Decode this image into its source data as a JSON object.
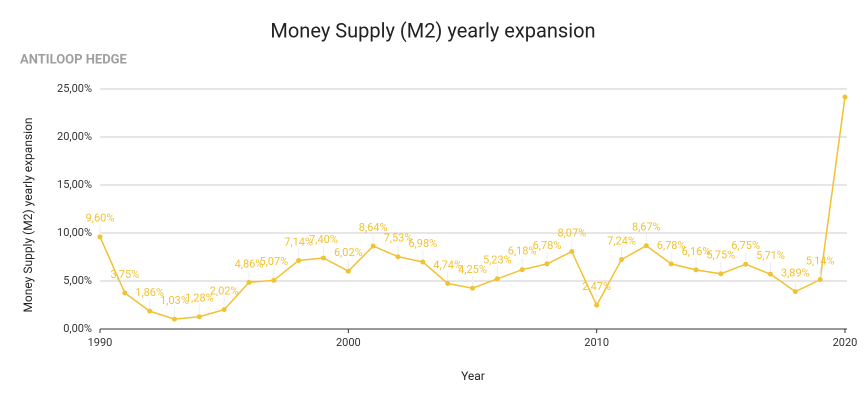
{
  "chart_data": {
    "type": "line",
    "title": "Money Supply (M2) yearly expansion",
    "subtitle": "ANTILOOP HEDGE",
    "xlabel": "Year",
    "ylabel": "Money Supply (M2) yearly expansion",
    "x": [
      1990,
      1991,
      1992,
      1993,
      1994,
      1995,
      1996,
      1997,
      1998,
      1999,
      2000,
      2001,
      2002,
      2003,
      2004,
      2005,
      2006,
      2007,
      2008,
      2009,
      2010,
      2011,
      2012,
      2013,
      2014,
      2015,
      2016,
      2017,
      2018,
      2019,
      2020
    ],
    "series": [
      {
        "name": "Money Supply (M2) yearly expansion",
        "color": "#f1c232",
        "values": [
          9.6,
          3.75,
          1.86,
          1.03,
          1.28,
          2.02,
          4.86,
          5.07,
          7.14,
          7.4,
          6.02,
          8.64,
          7.53,
          6.98,
          4.74,
          4.25,
          5.23,
          6.18,
          6.78,
          8.07,
          2.47,
          7.24,
          8.67,
          6.78,
          6.16,
          5.75,
          6.75,
          5.71,
          3.89,
          5.14,
          24.17
        ],
        "value_labels": [
          "9,60%",
          "3,75%",
          "1,86%",
          "1,03%",
          "1,28%",
          "2,02%",
          "4,86%",
          "5,07%",
          "7,14%",
          "7,40%",
          "6,02%",
          "8,64%",
          "7,53%",
          "6,98%",
          "4,74%",
          "4,25%",
          "5,23%",
          "6,18%",
          "6,78%",
          "8,07%",
          "2,47%",
          "7,24%",
          "8,67%",
          "6,78%",
          "6,16%",
          "5,75%",
          "6,75%",
          "5,71%",
          "3,89%",
          "5,14%",
          null
        ]
      }
    ],
    "xlim": [
      1990,
      2020
    ],
    "xticks": [
      1990,
      2000,
      2010,
      2020
    ],
    "ylim": [
      0,
      25
    ],
    "yticks": [
      {
        "value": 0,
        "label": "0,00%"
      },
      {
        "value": 5,
        "label": "5,00%"
      },
      {
        "value": 10,
        "label": "10,00%"
      },
      {
        "value": 15,
        "label": "15,00%"
      },
      {
        "value": 20,
        "label": "20,00%"
      },
      {
        "value": 25,
        "label": "25,00%"
      }
    ],
    "grid": true
  }
}
